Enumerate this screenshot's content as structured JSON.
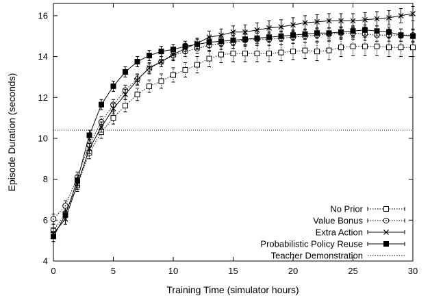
{
  "chart_data": {
    "type": "line",
    "title": "",
    "xlabel": "Training Time (simulator hours)",
    "ylabel": "Episode Duration (seconds)",
    "xlim": [
      0,
      30
    ],
    "ylim": [
      4,
      16.6
    ],
    "xticks": [
      0,
      5,
      10,
      15,
      20,
      25,
      30
    ],
    "yticks": [
      4,
      6,
      8,
      10,
      12,
      14,
      16
    ],
    "grid": false,
    "legend_position": "bottom-right",
    "x": [
      0,
      1,
      2,
      3,
      4,
      5,
      6,
      7,
      8,
      9,
      10,
      11,
      12,
      13,
      14,
      15,
      16,
      17,
      18,
      19,
      20,
      21,
      22,
      23,
      24,
      25,
      26,
      27,
      28,
      29,
      30
    ],
    "series": [
      {
        "name": "No Prior",
        "marker": "open-square",
        "dash": "dotted",
        "values": [
          5.5,
          6.3,
          7.7,
          9.3,
          10.3,
          11.0,
          11.6,
          12.15,
          12.55,
          12.8,
          13.1,
          13.35,
          13.6,
          13.9,
          14.1,
          14.15,
          14.15,
          14.15,
          14.15,
          14.2,
          14.25,
          14.3,
          14.25,
          14.3,
          14.45,
          14.5,
          14.5,
          14.5,
          14.45,
          14.45,
          14.45
        ],
        "errors": [
          0.3,
          0.3,
          0.3,
          0.3,
          0.3,
          0.3,
          0.3,
          0.3,
          0.3,
          0.35,
          0.35,
          0.35,
          0.4,
          0.4,
          0.4,
          0.4,
          0.4,
          0.4,
          0.4,
          0.4,
          0.4,
          0.4,
          0.45,
          0.45,
          0.45,
          0.45,
          0.45,
          0.45,
          0.45,
          0.45,
          0.45
        ]
      },
      {
        "name": "Value Bonus",
        "marker": "open-circle",
        "dash": "dotted",
        "values": [
          6.05,
          6.7,
          8.1,
          9.7,
          10.8,
          11.65,
          12.35,
          12.9,
          13.4,
          13.75,
          14.05,
          14.25,
          14.4,
          14.55,
          14.65,
          14.7,
          14.8,
          14.85,
          14.85,
          14.9,
          14.95,
          15.0,
          15.05,
          15.1,
          15.15,
          15.15,
          15.1,
          15.05,
          15.05,
          15.05,
          15.05
        ],
        "errors": [
          0.25,
          0.25,
          0.25,
          0.25,
          0.25,
          0.25,
          0.25,
          0.25,
          0.25,
          0.25,
          0.25,
          0.25,
          0.25,
          0.3,
          0.3,
          0.3,
          0.3,
          0.3,
          0.3,
          0.3,
          0.3,
          0.3,
          0.3,
          0.3,
          0.3,
          0.3,
          0.3,
          0.3,
          0.3,
          0.3,
          0.3
        ]
      },
      {
        "name": "Extra Action",
        "marker": "cross",
        "dash": "solid",
        "values": [
          5.35,
          6.05,
          7.75,
          9.5,
          10.55,
          11.45,
          12.15,
          12.85,
          13.45,
          13.75,
          14.1,
          14.4,
          14.65,
          14.95,
          15.05,
          15.2,
          15.2,
          15.3,
          15.4,
          15.45,
          15.55,
          15.65,
          15.7,
          15.75,
          15.75,
          15.75,
          15.8,
          15.85,
          15.9,
          16.0,
          16.1
        ],
        "errors": [
          0.25,
          0.25,
          0.25,
          0.25,
          0.25,
          0.25,
          0.25,
          0.25,
          0.25,
          0.25,
          0.25,
          0.25,
          0.25,
          0.3,
          0.3,
          0.3,
          0.35,
          0.35,
          0.35,
          0.35,
          0.35,
          0.35,
          0.35,
          0.35,
          0.35,
          0.35,
          0.35,
          0.35,
          0.35,
          0.35,
          0.35
        ]
      },
      {
        "name": "Probabilistic Policy Reuse",
        "marker": "filled-square",
        "dash": "solid",
        "values": [
          5.2,
          6.25,
          7.95,
          10.15,
          11.65,
          12.55,
          13.25,
          13.75,
          14.05,
          14.25,
          14.35,
          14.5,
          14.6,
          14.7,
          14.75,
          14.8,
          14.85,
          14.9,
          14.95,
          15.0,
          15.05,
          15.1,
          15.15,
          15.15,
          15.2,
          15.25,
          15.3,
          15.25,
          15.2,
          15.05,
          15.0
        ],
        "errors": [
          0.25,
          0.25,
          0.25,
          0.25,
          0.25,
          0.25,
          0.25,
          0.25,
          0.25,
          0.25,
          0.25,
          0.25,
          0.25,
          0.25,
          0.25,
          0.25,
          0.25,
          0.25,
          0.25,
          0.25,
          0.25,
          0.25,
          0.25,
          0.25,
          0.25,
          0.25,
          0.25,
          0.25,
          0.25,
          0.3,
          0.3
        ]
      },
      {
        "name": "Teacher Demonstration",
        "marker": "none",
        "dash": "dotted",
        "constant": 10.4
      }
    ]
  }
}
